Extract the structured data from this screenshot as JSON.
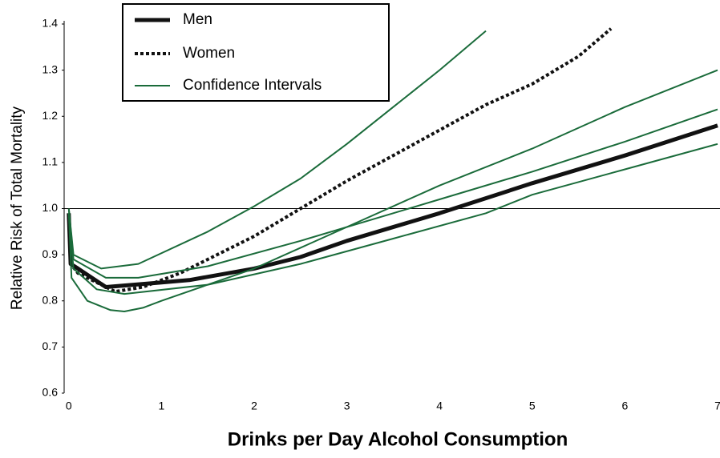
{
  "chart_data": {
    "type": "line",
    "xlabel": "Drinks per Day Alcohol Consumption",
    "ylabel": "Relative Risk of Total Mortality",
    "xlim": [
      -0.05,
      7
    ],
    "xticks": [
      0,
      1,
      2,
      3,
      4,
      5,
      6,
      7
    ],
    "ylim": [
      0.6,
      1.4
    ],
    "yticks": [
      0.6,
      0.7,
      0.8,
      0.9,
      {
        "value": 1,
        "label": "1.0"
      },
      1.1,
      1.2,
      1.3,
      1.4
    ],
    "reference_line": 1,
    "series": [
      {
        "name": "Men",
        "color": "#111111",
        "style": "solid",
        "lines": [
          {
            "x": [
              0,
              0.02,
              0.1,
              0.4,
              1,
              1.3,
              2,
              2.5,
              3,
              4,
              5,
              6,
              7
            ],
            "values": [
              0.99,
              0.88,
              0.87,
              0.83,
              0.84,
              0.845,
              0.87,
              0.895,
              0.93,
              0.99,
              1.055,
              1.115,
              1.18
            ]
          }
        ]
      },
      {
        "name": "Women",
        "color": "#111111",
        "style": "dotted",
        "lines": [
          {
            "x": [
              0,
              0.02,
              0.1,
              0.5,
              0.8,
              1.2,
              1.5,
              2,
              2.5,
              3,
              3.5,
              4,
              4.5,
              5,
              5.5,
              5.85
            ],
            "values": [
              0.98,
              0.88,
              0.86,
              0.82,
              0.83,
              0.86,
              0.89,
              0.94,
              1.0,
              1.06,
              1.115,
              1.17,
              1.225,
              1.27,
              1.33,
              1.39
            ]
          }
        ]
      },
      {
        "name": "Confidence Intervals",
        "color": "#1a6b3a",
        "style": "thin",
        "lines": [
          {
            "x": [
              0,
              0.05,
              0.4,
              0.75,
              1.5,
              2.5,
              3.5,
              4,
              5,
              6,
              7
            ],
            "values": [
              1.0,
              0.89,
              0.85,
              0.85,
              0.875,
              0.93,
              0.99,
              1.02,
              1.08,
              1.145,
              1.215
            ]
          },
          {
            "x": [
              0,
              0.05,
              0.3,
              0.6,
              1.5,
              2.5,
              3.5,
              4.5,
              5,
              6,
              7
            ],
            "values": [
              0.99,
              0.87,
              0.825,
              0.815,
              0.835,
              0.88,
              0.935,
              0.99,
              1.03,
              1.085,
              1.14
            ]
          },
          {
            "x": [
              0,
              0.05,
              0.35,
              0.75,
              1.5,
              2,
              2.5,
              3,
              3.5,
              4,
              4.5
            ],
            "values": [
              1.0,
              0.9,
              0.87,
              0.88,
              0.95,
              1.005,
              1.065,
              1.14,
              1.22,
              1.3,
              1.385
            ]
          },
          {
            "x": [
              0,
              0.03,
              0.2,
              0.45,
              0.6,
              0.8,
              1,
              2,
              3,
              4,
              5,
              6,
              7
            ],
            "values": [
              0.99,
              0.85,
              0.8,
              0.78,
              0.777,
              0.785,
              0.8,
              0.87,
              0.96,
              1.05,
              1.13,
              1.22,
              1.3
            ]
          }
        ]
      }
    ]
  }
}
